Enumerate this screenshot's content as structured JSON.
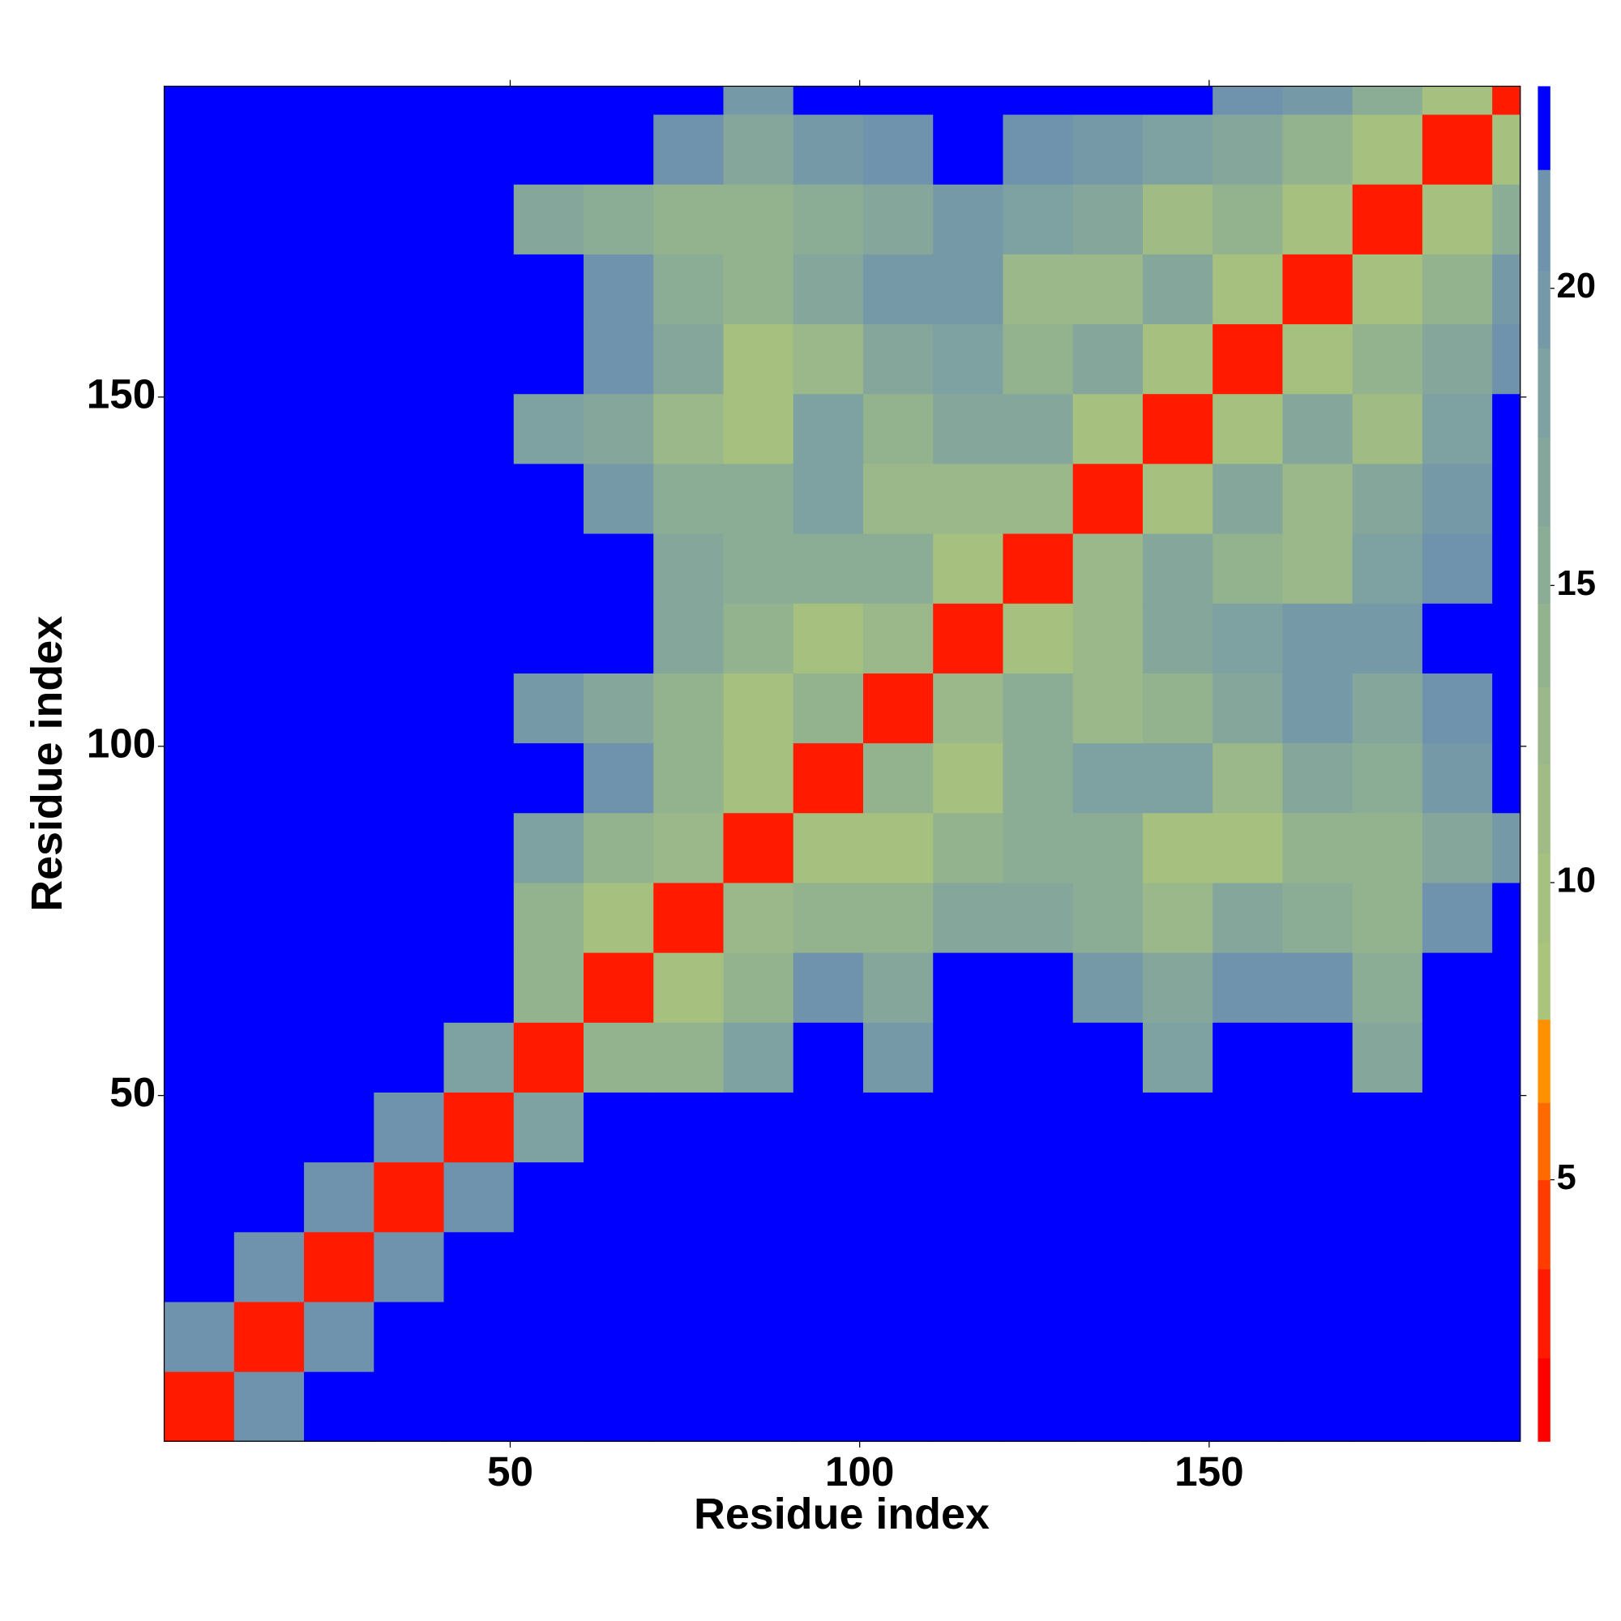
{
  "chart_data": {
    "type": "heatmap",
    "xlabel": "Residue index",
    "ylabel": "Residue index",
    "xlim": [
      0.5,
      194.5
    ],
    "ylim": [
      0.5,
      194.5
    ],
    "xticks": [
      50,
      100,
      150
    ],
    "yticks": [
      50,
      100,
      150
    ],
    "bins": [
      0.5,
      10.5,
      20.5,
      30.5,
      40.5,
      50.5,
      60.5,
      70.5,
      80.5,
      90.5,
      100.5,
      110.5,
      120.5,
      130.5,
      140.5,
      150.5,
      160.5,
      170.5,
      180.5,
      190.5,
      194.5
    ],
    "symmetric": true,
    "matrix": [
      [
        3,
        21,
        23,
        23,
        23,
        23,
        23,
        23,
        23,
        23,
        23,
        23,
        23,
        23,
        23,
        23,
        23,
        23,
        23,
        23
      ],
      [
        3,
        21,
        23,
        23,
        23,
        23,
        23,
        23,
        23,
        23,
        23,
        23,
        23,
        23,
        23,
        23,
        23,
        23,
        23
      ],
      [
        3,
        21,
        23,
        23,
        23,
        23,
        23,
        23,
        23,
        23,
        23,
        23,
        23,
        23,
        23,
        23,
        23,
        23
      ],
      [
        3,
        21,
        23,
        23,
        23,
        23,
        23,
        23,
        23,
        23,
        23,
        23,
        23,
        23,
        23,
        23,
        23
      ],
      [
        3,
        18,
        23,
        23,
        23,
        23,
        23,
        23,
        23,
        23,
        23,
        23,
        23,
        23,
        23,
        23
      ],
      [
        3,
        14,
        14,
        18,
        23,
        19,
        23,
        23,
        23,
        18,
        22,
        23,
        17,
        23,
        23
      ],
      [
        3,
        10,
        14,
        21,
        16,
        22,
        23,
        20,
        16,
        21,
        21,
        15,
        23,
        23
      ],
      [
        3,
        12,
        14,
        14,
        16,
        17,
        15,
        12,
        16,
        15,
        14,
        21,
        23
      ],
      [
        3,
        10,
        10,
        14,
        15,
        15,
        9,
        10,
        14,
        14,
        17,
        20
      ],
      [
        3,
        14,
        10,
        15,
        18,
        18,
        12,
        16,
        15,
        19,
        23
      ],
      [
        3,
        12,
        15,
        12,
        14,
        17,
        20,
        16,
        21,
        23
      ],
      [
        3,
        10,
        13,
        16,
        18,
        20,
        19,
        22,
        23
      ],
      [
        3,
        12,
        16,
        14,
        13,
        18,
        21,
        23
      ],
      [
        3,
        10,
        16,
        12,
        16,
        20,
        23
      ],
      [
        3,
        10,
        16,
        11,
        18,
        22
      ],
      [
        3,
        10,
        14,
        16,
        21
      ],
      [
        3,
        10,
        14,
        20
      ],
      [
        3,
        10,
        15
      ],
      [
        3,
        10
      ],
      [
        3
      ]
    ],
    "colorbar": {
      "lim": [
        0.6,
        23.4
      ],
      "ticks": [
        5,
        10,
        15,
        20
      ],
      "levels": [
        0.6,
        2,
        3.5,
        5,
        6.3,
        7.7,
        9,
        10.5,
        12,
        13.3,
        14.7,
        16,
        17.5,
        19,
        20.3,
        22,
        23.4
      ],
      "colors": [
        "#ff0000",
        "#ff1a00",
        "#ff3c00",
        "#ff6a00",
        "#ff9000",
        "#aac47b",
        "#a5c07f",
        "#a0bc84",
        "#9ab889",
        "#93b38f",
        "#8cad95",
        "#85a79b",
        "#7ea1a1",
        "#7699a7",
        "#6f92ad",
        "#0000ff"
      ]
    }
  }
}
